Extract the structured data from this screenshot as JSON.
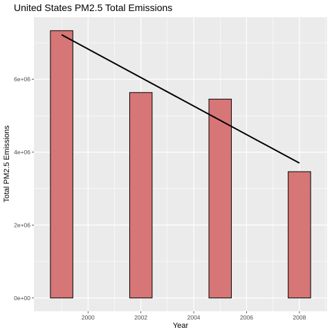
{
  "chart_data": {
    "type": "bar",
    "title": "United States PM2.5 Total Emissions",
    "xlabel": "Year",
    "ylabel": "Total PM2.5 Emissions",
    "categories": [
      1999,
      2002,
      2005,
      2008
    ],
    "values": [
      7332967,
      5635780,
      5454703,
      3464206
    ],
    "trend_line": {
      "x": [
        1999,
        2008
      ],
      "y": [
        7220000,
        3700000
      ]
    },
    "xlim": [
      1997.95,
      2009.05
    ],
    "ylim": [
      -365000,
      7700000
    ],
    "x_ticks": [
      2000,
      2002,
      2004,
      2006,
      2008
    ],
    "x_tick_labels": [
      "2000",
      "2002",
      "2004",
      "2006",
      "2008"
    ],
    "y_ticks": [
      0,
      2000000,
      4000000,
      6000000
    ],
    "y_tick_labels": [
      "0e+00",
      "2e+06",
      "4e+06",
      "6e+06"
    ],
    "grid": true,
    "colors": {
      "bar_fill": "#d67676",
      "bar_outline": "#000000",
      "panel_background": "#ebebeb",
      "grid": "#ffffff",
      "trend_line": "#000000"
    }
  }
}
